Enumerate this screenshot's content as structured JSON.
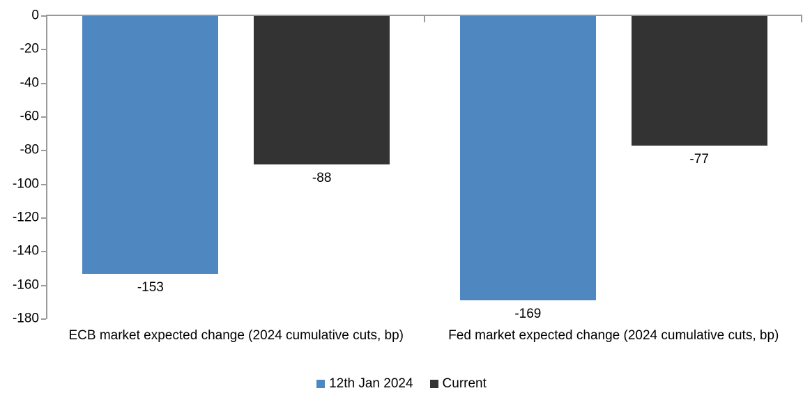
{
  "chart_data": {
    "type": "bar",
    "orientation": "vertical",
    "title": "",
    "xlabel": "",
    "ylabel": "",
    "categories": [
      "ECB market expected change (2024 cumulative cuts, bp)",
      "Fed market expected change (2024 cumulative cuts, bp)"
    ],
    "series": [
      {
        "name": "12th Jan 2024",
        "color": "#4F88C1",
        "values": [
          -153,
          -169
        ]
      },
      {
        "name": "Current",
        "color": "#333333",
        "values": [
          -88,
          -77
        ]
      }
    ],
    "data_labels": [
      [
        "-153",
        "-169"
      ],
      [
        "-88",
        "-77"
      ]
    ],
    "ylim": [
      -180,
      0
    ],
    "yticks": [
      0,
      -20,
      -40,
      -60,
      -80,
      -100,
      -120,
      -140,
      -160,
      -180
    ],
    "grid": false,
    "legend_position": "bottom",
    "axis_color": "#9A9A9A",
    "text_color": "#000000",
    "background_color": "#FFFFFF"
  },
  "layout_fractions": {
    "cluster_margin_pct": 9.3,
    "bar_width_pct": 36.0,
    "bar_gap_pct": 9.4
  }
}
